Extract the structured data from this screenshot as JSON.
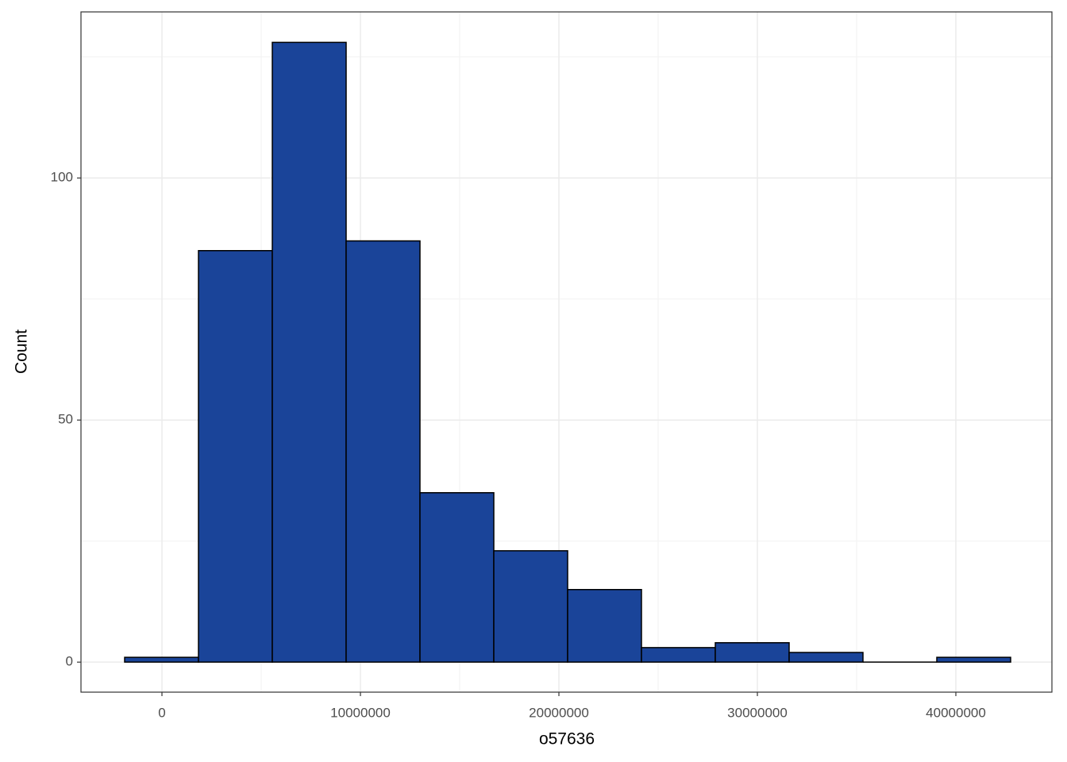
{
  "chart_data": {
    "type": "histogram",
    "x_label": "o57636",
    "y_label": "Count",
    "bins": [
      -1880000,
      1840000,
      5560000,
      9280000,
      13000000,
      16720000,
      20440000,
      24160000,
      27880000,
      31600000,
      35320000,
      39040000,
      42760000
    ],
    "counts": [
      1,
      85,
      128,
      87,
      35,
      23,
      15,
      3,
      4,
      2,
      0,
      1
    ],
    "color": "#1a4499",
    "xlim": [
      -4080000,
      44840000
    ],
    "xticks": [
      0,
      10000000,
      20000000,
      30000000,
      40000000
    ],
    "ylim": [
      -6.2,
      134.3
    ],
    "yticks": [
      0,
      50,
      100
    ],
    "grid": true
  }
}
